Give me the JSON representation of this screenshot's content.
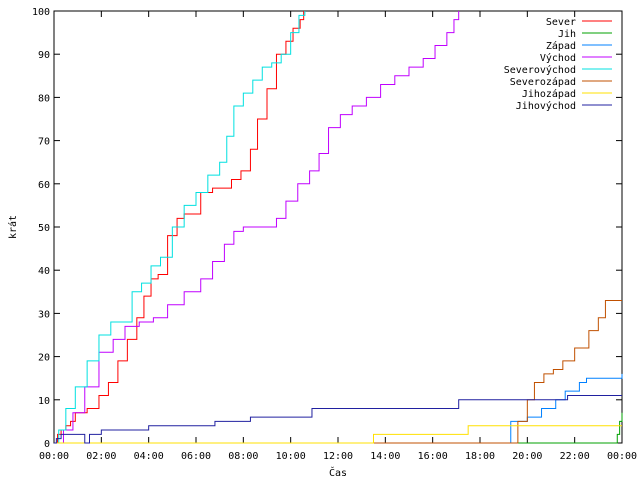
{
  "chart_data": {
    "type": "line",
    "xlabel": "Čas",
    "ylabel": "krát",
    "xlim": [
      0,
      24
    ],
    "ylim": [
      0,
      100
    ],
    "x_ticks": [
      {
        "value": 0,
        "label": "00:00"
      },
      {
        "value": 2,
        "label": "02:00"
      },
      {
        "value": 4,
        "label": "04:00"
      },
      {
        "value": 6,
        "label": "06:00"
      },
      {
        "value": 8,
        "label": "08:00"
      },
      {
        "value": 10,
        "label": "10:00"
      },
      {
        "value": 12,
        "label": "12:00"
      },
      {
        "value": 14,
        "label": "14:00"
      },
      {
        "value": 16,
        "label": "16:00"
      },
      {
        "value": 18,
        "label": "18:00"
      },
      {
        "value": 20,
        "label": "20:00"
      },
      {
        "value": 22,
        "label": "22:00"
      },
      {
        "value": 24,
        "label": "00:00"
      }
    ],
    "y_ticks": [
      0,
      10,
      20,
      30,
      40,
      50,
      60,
      70,
      80,
      90,
      100
    ],
    "legend_position": "top-right",
    "grid": false,
    "series": [
      {
        "name": "Sever",
        "color": "#ff0000",
        "x": [
          0,
          0.15,
          0.3,
          0.5,
          0.7,
          0.9,
          1.4,
          1.9,
          2.3,
          2.7,
          3.1,
          3.5,
          3.8,
          4.1,
          4.4,
          4.8,
          5.2,
          5.5,
          5.8,
          6.2,
          6.7,
          7.1,
          7.5,
          7.9,
          8.3,
          8.6,
          9.0,
          9.4,
          9.8,
          10.1,
          10.4,
          10.55
        ],
        "y": [
          0,
          2,
          3,
          4,
          5,
          7,
          8,
          11,
          14,
          19,
          24,
          29,
          34,
          38,
          39,
          48,
          52,
          53,
          53,
          58,
          59,
          59,
          61,
          63,
          68,
          75,
          82,
          90,
          93,
          96,
          98,
          100
        ]
      },
      {
        "name": "Jih",
        "color": "#00a000",
        "x": [
          0,
          23.7,
          23.8,
          23.9,
          24
        ],
        "y": [
          0,
          0,
          2,
          5,
          7
        ]
      },
      {
        "name": "Západ",
        "color": "#0080ff",
        "x": [
          0,
          19.0,
          19.3,
          20.0,
          20.6,
          21.2,
          21.6,
          22.2,
          22.5,
          24
        ],
        "y": [
          0,
          0,
          5,
          6,
          8,
          10,
          12,
          14,
          15,
          16
        ]
      },
      {
        "name": "Východ",
        "color": "#c000ff",
        "x": [
          0,
          0.4,
          0.8,
          1.3,
          1.9,
          2.5,
          3.0,
          3.6,
          4.2,
          4.8,
          5.5,
          6.2,
          6.7,
          7.2,
          7.6,
          8.0,
          8.5,
          9.0,
          9.4,
          9.8,
          10.3,
          10.8,
          11.2,
          11.6,
          12.1,
          12.6,
          13.2,
          13.8,
          14.4,
          15.0,
          15.6,
          16.1,
          16.6,
          16.9,
          17.1
        ],
        "y": [
          0,
          3,
          7,
          13,
          21,
          24,
          27,
          28,
          29,
          32,
          35,
          38,
          42,
          46,
          49,
          50,
          50,
          50,
          52,
          56,
          60,
          63,
          67,
          73,
          76,
          78,
          80,
          83,
          85,
          87,
          89,
          92,
          95,
          98,
          100
        ]
      },
      {
        "name": "Severovýchod",
        "color": "#00e0e0",
        "x": [
          0,
          0.2,
          0.5,
          0.9,
          1.4,
          1.9,
          2.4,
          2.9,
          3.3,
          3.7,
          4.1,
          4.5,
          5.0,
          5.5,
          6.0,
          6.5,
          7.0,
          7.3,
          7.6,
          8.0,
          8.4,
          8.8,
          9.2,
          9.6,
          10.0,
          10.35,
          10.6
        ],
        "y": [
          0,
          3,
          8,
          13,
          19,
          25,
          28,
          28,
          35,
          37,
          41,
          43,
          50,
          55,
          58,
          62,
          65,
          71,
          78,
          81,
          84,
          87,
          88,
          90,
          95,
          99,
          100
        ]
      },
      {
        "name": "Severozápad",
        "color": "#c05000",
        "x": [
          0,
          19.3,
          19.6,
          20.0,
          20.3,
          20.7,
          21.1,
          21.5,
          22.0,
          22.6,
          23.0,
          23.3,
          24
        ],
        "y": [
          0,
          0,
          5,
          10,
          14,
          16,
          17,
          19,
          22,
          26,
          29,
          33,
          33
        ]
      },
      {
        "name": "Jihozápad",
        "color": "#ffe000",
        "x": [
          0,
          13.4,
          13.5,
          17.3,
          17.5,
          24
        ],
        "y": [
          0,
          0,
          2,
          2,
          4,
          4
        ]
      },
      {
        "name": "Jihovýchod",
        "color": "#2020a0",
        "x": [
          0,
          0.1,
          0.3,
          1.3,
          1.5,
          2.0,
          3.2,
          4.0,
          4.8,
          5.8,
          6.8,
          7.8,
          8.3,
          9.5,
          10.9,
          12.0,
          14.5,
          17.1,
          18.6,
          20.4,
          21.7,
          24
        ],
        "y": [
          0,
          1,
          2,
          0,
          2,
          3,
          3,
          4,
          4,
          4,
          5,
          5,
          6,
          6,
          8,
          8,
          8,
          10,
          10,
          10,
          11,
          11
        ]
      }
    ]
  }
}
